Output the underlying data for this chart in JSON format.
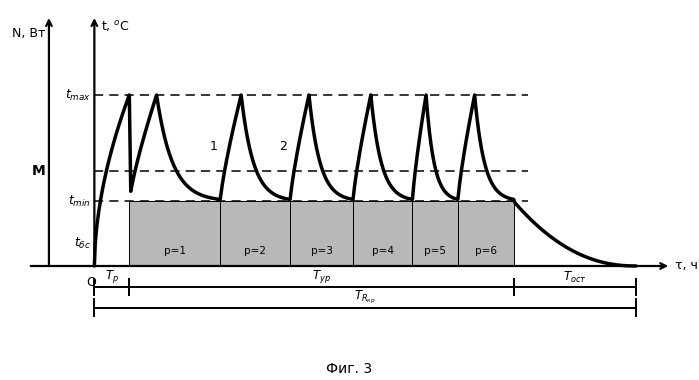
{
  "fig_width": 6.99,
  "fig_height": 3.8,
  "dpi": 100,
  "bg_color": "#ffffff",
  "p_labels": [
    "p=1",
    "p=2",
    "p=3",
    "p=4",
    "p=5",
    "p=6"
  ]
}
